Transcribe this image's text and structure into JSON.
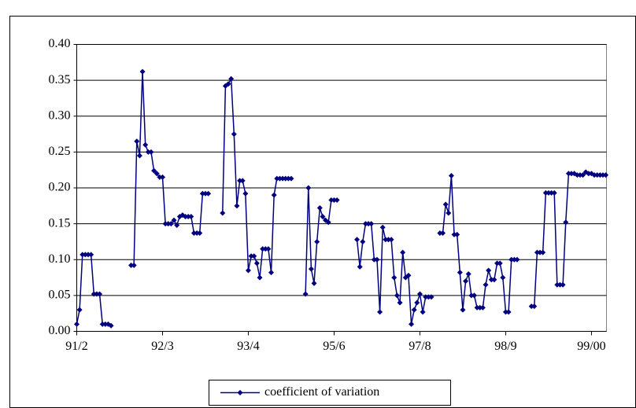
{
  "chart_data": {
    "type": "line",
    "categories": [
      "91/2",
      null,
      null,
      null,
      null,
      null,
      null,
      null,
      null,
      null,
      null,
      null,
      null,
      null,
      null,
      null,
      null,
      null,
      null,
      null,
      null,
      null,
      null,
      null,
      null,
      null,
      null,
      null,
      null,
      null,
      "92/3",
      null,
      null,
      null,
      null,
      null,
      null,
      null,
      null,
      null,
      null,
      null,
      null,
      null,
      null,
      null,
      null,
      null,
      null,
      null,
      null,
      null,
      null,
      null,
      null,
      null,
      null,
      null,
      null,
      null,
      "93/4",
      null,
      null,
      null,
      null,
      null,
      null,
      null,
      null,
      null,
      null,
      null,
      null,
      null,
      null,
      null,
      null,
      null,
      null,
      null,
      null,
      null,
      null,
      null,
      null,
      null,
      null,
      null,
      null,
      null,
      "95/6",
      null,
      null,
      null,
      null,
      null,
      null,
      null,
      null,
      null,
      null,
      null,
      null,
      null,
      null,
      null,
      null,
      null,
      null,
      null,
      null,
      null,
      null,
      null,
      null,
      null,
      null,
      null,
      null,
      null,
      "97/8",
      null,
      null,
      null,
      null,
      null,
      null,
      null,
      null,
      null,
      null,
      null,
      null,
      null,
      null,
      null,
      null,
      null,
      null,
      null,
      null,
      null,
      null,
      null,
      null,
      null,
      null,
      null,
      null,
      null,
      "98/9",
      null,
      null,
      null,
      null,
      null,
      null,
      null,
      null,
      null,
      null,
      null,
      null,
      null,
      null,
      null,
      null,
      null,
      null,
      null,
      null,
      null,
      null,
      null,
      null,
      null,
      null,
      null,
      null,
      null,
      "99/00",
      null,
      null,
      null,
      null,
      null
    ],
    "series": [
      {
        "name": "coefficient of variation",
        "color": "#000080",
        "values": [
          0.01,
          0.03,
          0.107,
          0.107,
          0.107,
          0.107,
          0.052,
          0.052,
          0.052,
          0.01,
          0.01,
          0.01,
          0.008,
          null,
          null,
          null,
          null,
          null,
          null,
          0.092,
          0.092,
          0.265,
          0.245,
          0.362,
          0.26,
          0.25,
          0.25,
          0.224,
          0.22,
          0.215,
          0.215,
          0.15,
          0.15,
          0.15,
          0.155,
          0.148,
          0.16,
          0.162,
          0.16,
          0.16,
          0.16,
          0.137,
          0.137,
          0.137,
          0.192,
          0.192,
          0.192,
          null,
          null,
          null,
          null,
          0.165,
          0.342,
          0.345,
          0.352,
          0.275,
          0.175,
          0.21,
          0.21,
          0.192,
          0.085,
          0.105,
          0.105,
          0.095,
          0.075,
          0.115,
          0.115,
          0.115,
          0.082,
          0.19,
          0.213,
          0.213,
          0.213,
          0.213,
          0.213,
          0.213,
          null,
          null,
          null,
          null,
          0.052,
          0.2,
          0.087,
          0.067,
          0.125,
          0.172,
          0.16,
          0.155,
          0.152,
          0.183,
          0.183,
          0.183,
          null,
          null,
          null,
          null,
          null,
          null,
          0.128,
          0.09,
          0.125,
          0.15,
          0.15,
          0.15,
          0.1,
          0.1,
          0.027,
          0.145,
          0.128,
          0.128,
          0.128,
          0.075,
          0.05,
          0.04,
          0.11,
          0.075,
          0.078,
          0.01,
          0.03,
          0.04,
          0.052,
          0.027,
          0.048,
          0.048,
          0.048,
          null,
          null,
          0.137,
          0.137,
          0.177,
          0.165,
          0.217,
          0.135,
          0.135,
          0.082,
          0.03,
          0.07,
          0.08,
          0.05,
          0.05,
          0.033,
          0.033,
          0.033,
          0.065,
          0.085,
          0.072,
          0.072,
          0.095,
          0.095,
          0.075,
          0.027,
          0.027,
          0.1,
          0.1,
          0.1,
          null,
          null,
          null,
          null,
          0.035,
          0.035,
          0.11,
          0.11,
          0.11,
          0.193,
          0.193,
          0.193,
          0.193,
          0.065,
          0.065,
          0.065,
          0.152,
          0.22,
          0.22,
          0.22,
          0.218,
          0.218,
          0.218,
          0.222,
          0.22,
          0.22,
          0.218,
          0.218,
          0.218,
          0.218,
          0.218
        ]
      }
    ],
    "ylim": [
      0,
      0.4
    ],
    "yticks": [
      {
        "value": 0,
        "label": "0.00"
      },
      {
        "value": 0.05,
        "label": "0.05"
      },
      {
        "value": 0.1,
        "label": "0.10"
      },
      {
        "value": 0.15,
        "label": "0.15"
      },
      {
        "value": 0.2,
        "label": "0.20"
      },
      {
        "value": 0.25,
        "label": "0.25"
      },
      {
        "value": 0.3,
        "label": "0.30"
      },
      {
        "value": 0.35,
        "label": "0.35"
      },
      {
        "value": 0.4,
        "label": "0.40"
      }
    ],
    "grid": true,
    "legend": "bottom"
  }
}
